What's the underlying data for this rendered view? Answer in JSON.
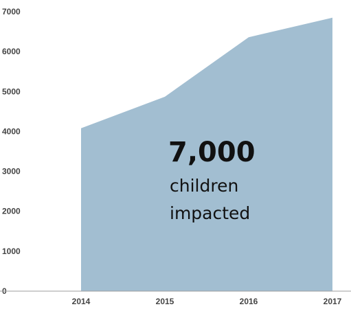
{
  "chart_data": {
    "type": "area",
    "x": [
      "2014",
      "2015",
      "2016",
      "2017"
    ],
    "series": [
      {
        "values": [
          4080,
          4870,
          6360,
          6850
        ]
      }
    ],
    "yticks": [
      "0",
      "1000",
      "2000",
      "3000",
      "4000",
      "5000",
      "6000",
      "7000"
    ],
    "ylim": [
      0,
      7000
    ],
    "grid": false,
    "legend": "none",
    "fill_color": "#a2bed1",
    "axis_color": "#9e9e9e",
    "annotation": {
      "value": "7,000",
      "line1": "children",
      "line2": "impacted"
    }
  }
}
